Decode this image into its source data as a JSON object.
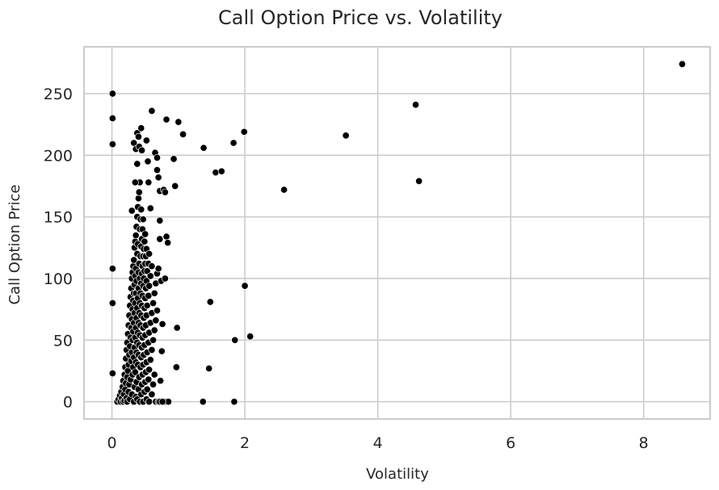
{
  "chart_data": {
    "type": "scatter",
    "title": "Call Option Price vs. Volatility",
    "xlabel": "Volatility",
    "ylabel": "Call Option Price",
    "xlim": [
      -0.42,
      9.0
    ],
    "ylim": [
      -14,
      288
    ],
    "xticks": [
      0,
      2,
      4,
      6,
      8
    ],
    "yticks": [
      0,
      50,
      100,
      150,
      200,
      250
    ],
    "grid": true,
    "legend": "none",
    "colors": {
      "point": "#000000",
      "point_edge": "#ffffff",
      "grid": "#cccccc",
      "spine": "#cccccc",
      "background": "#ffffff"
    },
    "points": [
      [
        0.01,
        250
      ],
      [
        0.01,
        230
      ],
      [
        0.01,
        209
      ],
      [
        0.01,
        108
      ],
      [
        0.01,
        80
      ],
      [
        0.01,
        23
      ],
      [
        0.08,
        0
      ],
      [
        0.1,
        2
      ],
      [
        0.12,
        5
      ],
      [
        0.13,
        0
      ],
      [
        0.14,
        8
      ],
      [
        0.15,
        3
      ],
      [
        0.16,
        12
      ],
      [
        0.17,
        0
      ],
      [
        0.17,
        17
      ],
      [
        0.18,
        6
      ],
      [
        0.19,
        22
      ],
      [
        0.19,
        1
      ],
      [
        0.2,
        28
      ],
      [
        0.2,
        10
      ],
      [
        0.21,
        35
      ],
      [
        0.21,
        15
      ],
      [
        0.22,
        42
      ],
      [
        0.22,
        3
      ],
      [
        0.23,
        48
      ],
      [
        0.23,
        20
      ],
      [
        0.23,
        0
      ],
      [
        0.24,
        55
      ],
      [
        0.24,
        25
      ],
      [
        0.25,
        62
      ],
      [
        0.25,
        30
      ],
      [
        0.25,
        8
      ],
      [
        0.26,
        70
      ],
      [
        0.26,
        38
      ],
      [
        0.26,
        14
      ],
      [
        0.27,
        78
      ],
      [
        0.27,
        45
      ],
      [
        0.27,
        2
      ],
      [
        0.28,
        85
      ],
      [
        0.28,
        52
      ],
      [
        0.28,
        18
      ],
      [
        0.29,
        92
      ],
      [
        0.29,
        60
      ],
      [
        0.29,
        33
      ],
      [
        0.3,
        100
      ],
      [
        0.3,
        67
      ],
      [
        0.3,
        40
      ],
      [
        0.3,
        6
      ],
      [
        0.31,
        105
      ],
      [
        0.31,
        75
      ],
      [
        0.31,
        50
      ],
      [
        0.31,
        22
      ],
      [
        0.32,
        110
      ],
      [
        0.32,
        82
      ],
      [
        0.32,
        57
      ],
      [
        0.32,
        28
      ],
      [
        0.33,
        115
      ],
      [
        0.33,
        88
      ],
      [
        0.33,
        64
      ],
      [
        0.33,
        36
      ],
      [
        0.33,
        0
      ],
      [
        0.34,
        125
      ],
      [
        0.34,
        95
      ],
      [
        0.34,
        72
      ],
      [
        0.34,
        44
      ],
      [
        0.34,
        12
      ],
      [
        0.35,
        130
      ],
      [
        0.35,
        102
      ],
      [
        0.35,
        80
      ],
      [
        0.35,
        52
      ],
      [
        0.35,
        24
      ],
      [
        0.36,
        135
      ],
      [
        0.36,
        108
      ],
      [
        0.36,
        88
      ],
      [
        0.36,
        60
      ],
      [
        0.36,
        32
      ],
      [
        0.36,
        4
      ],
      [
        0.37,
        142
      ],
      [
        0.37,
        98
      ],
      [
        0.37,
        68
      ],
      [
        0.37,
        40
      ],
      [
        0.37,
        16
      ],
      [
        0.38,
        150
      ],
      [
        0.38,
        120
      ],
      [
        0.38,
        76
      ],
      [
        0.38,
        48
      ],
      [
        0.38,
        2
      ],
      [
        0.39,
        158
      ],
      [
        0.39,
        128
      ],
      [
        0.39,
        84
      ],
      [
        0.39,
        56
      ],
      [
        0.39,
        30
      ],
      [
        0.4,
        165
      ],
      [
        0.4,
        105
      ],
      [
        0.4,
        92
      ],
      [
        0.4,
        64
      ],
      [
        0.4,
        38
      ],
      [
        0.4,
        10
      ],
      [
        0.41,
        170
      ],
      [
        0.41,
        112
      ],
      [
        0.41,
        72
      ],
      [
        0.41,
        46
      ],
      [
        0.41,
        20
      ],
      [
        0.42,
        140
      ],
      [
        0.42,
        100
      ],
      [
        0.42,
        80
      ],
      [
        0.42,
        54
      ],
      [
        0.42,
        0
      ],
      [
        0.43,
        148
      ],
      [
        0.43,
        118
      ],
      [
        0.43,
        88
      ],
      [
        0.43,
        62
      ],
      [
        0.43,
        28
      ],
      [
        0.44,
        156
      ],
      [
        0.44,
        126
      ],
      [
        0.44,
        96
      ],
      [
        0.44,
        70
      ],
      [
        0.44,
        36
      ],
      [
        0.44,
        6
      ],
      [
        0.45,
        132
      ],
      [
        0.45,
        104
      ],
      [
        0.45,
        78
      ],
      [
        0.45,
        44
      ],
      [
        0.45,
        14
      ],
      [
        0.46,
        140
      ],
      [
        0.46,
        110
      ],
      [
        0.46,
        86
      ],
      [
        0.46,
        52
      ],
      [
        0.46,
        22
      ],
      [
        0.47,
        148
      ],
      [
        0.47,
        118
      ],
      [
        0.47,
        94
      ],
      [
        0.47,
        60
      ],
      [
        0.47,
        30
      ],
      [
        0.47,
        0
      ],
      [
        0.48,
        124
      ],
      [
        0.48,
        100
      ],
      [
        0.48,
        68
      ],
      [
        0.48,
        38
      ],
      [
        0.49,
        130
      ],
      [
        0.49,
        106
      ],
      [
        0.49,
        76
      ],
      [
        0.49,
        46
      ],
      [
        0.49,
        8
      ],
      [
        0.5,
        136
      ],
      [
        0.5,
        112
      ],
      [
        0.5,
        84
      ],
      [
        0.5,
        54
      ],
      [
        0.5,
        16
      ],
      [
        0.51,
        118
      ],
      [
        0.51,
        92
      ],
      [
        0.51,
        62
      ],
      [
        0.51,
        24
      ],
      [
        0.52,
        124
      ],
      [
        0.52,
        98
      ],
      [
        0.52,
        70
      ],
      [
        0.52,
        32
      ],
      [
        0.52,
        2
      ],
      [
        0.53,
        106
      ],
      [
        0.53,
        78
      ],
      [
        0.53,
        40
      ],
      [
        0.53,
        10
      ],
      [
        0.55,
        112
      ],
      [
        0.55,
        86
      ],
      [
        0.55,
        48
      ],
      [
        0.55,
        18
      ],
      [
        0.56,
        120
      ],
      [
        0.56,
        94
      ],
      [
        0.56,
        56
      ],
      [
        0.56,
        26
      ],
      [
        0.56,
        0
      ],
      [
        0.58,
        102
      ],
      [
        0.58,
        64
      ],
      [
        0.58,
        34
      ],
      [
        0.6,
        110
      ],
      [
        0.6,
        72
      ],
      [
        0.6,
        42
      ],
      [
        0.6,
        6
      ],
      [
        0.62,
        80
      ],
      [
        0.62,
        50
      ],
      [
        0.62,
        14
      ],
      [
        0.64,
        88
      ],
      [
        0.64,
        58
      ],
      [
        0.64,
        22
      ],
      [
        0.66,
        96
      ],
      [
        0.66,
        66
      ],
      [
        0.66,
        0
      ],
      [
        0.68,
        104
      ],
      [
        0.68,
        74
      ],
      [
        0.7,
        108
      ],
      [
        0.7,
        0
      ],
      [
        0.3,
        155
      ],
      [
        0.33,
        210
      ],
      [
        0.36,
        205
      ],
      [
        0.38,
        218
      ],
      [
        0.4,
        215
      ],
      [
        0.41,
        207
      ],
      [
        0.44,
        222
      ],
      [
        0.45,
        204
      ],
      [
        0.38,
        193
      ],
      [
        0.42,
        178
      ],
      [
        0.35,
        178
      ],
      [
        0.52,
        212
      ],
      [
        0.54,
        195
      ],
      [
        0.55,
        178
      ],
      [
        0.58,
        157
      ],
      [
        0.6,
        236
      ],
      [
        0.65,
        202
      ],
      [
        0.68,
        188
      ],
      [
        0.7,
        182
      ],
      [
        0.72,
        171
      ],
      [
        0.68,
        198
      ],
      [
        0.72,
        132
      ],
      [
        0.72,
        147
      ],
      [
        0.74,
        98
      ],
      [
        0.76,
        63
      ],
      [
        0.78,
        172
      ],
      [
        0.8,
        100
      ],
      [
        0.8,
        170
      ],
      [
        0.82,
        134
      ],
      [
        0.84,
        129
      ],
      [
        0.82,
        229
      ],
      [
        0.93,
        197
      ],
      [
        0.95,
        175
      ],
      [
        0.98,
        60
      ],
      [
        0.97,
        28
      ],
      [
        1.0,
        227
      ],
      [
        1.07,
        217
      ],
      [
        1.38,
        206
      ],
      [
        1.48,
        81
      ],
      [
        1.46,
        27
      ],
      [
        0.73,
        17
      ],
      [
        0.75,
        41
      ],
      [
        0.8,
        0
      ],
      [
        0.85,
        0
      ],
      [
        0.72,
        0
      ],
      [
        0.76,
        0
      ],
      [
        1.37,
        0
      ],
      [
        1.84,
        0
      ],
      [
        1.56,
        186
      ],
      [
        1.65,
        187
      ],
      [
        1.83,
        210
      ],
      [
        1.85,
        50
      ],
      [
        1.99,
        219
      ],
      [
        2.0,
        94
      ],
      [
        2.08,
        53
      ],
      [
        2.59,
        172
      ],
      [
        3.52,
        216
      ],
      [
        4.57,
        241
      ],
      [
        4.62,
        179
      ],
      [
        8.58,
        274
      ]
    ]
  }
}
